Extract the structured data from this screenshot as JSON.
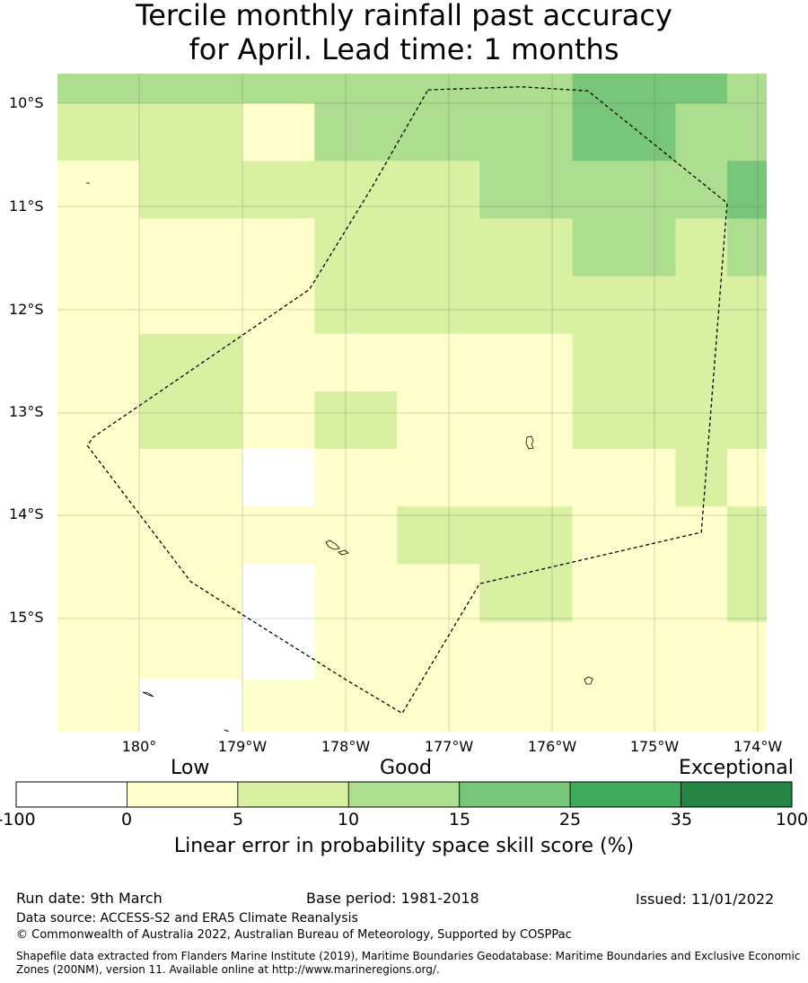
{
  "title": {
    "line1": "Tercile monthly rainfall past accuracy",
    "line2": "for April. Lead time: 1 months"
  },
  "map": {
    "lat_labels": [
      "10°S",
      "11°S",
      "12°S",
      "13°S",
      "14°S",
      "15°S"
    ],
    "lon_labels": [
      "180°",
      "179°W",
      "178°W",
      "177°W",
      "176°W",
      "175°W",
      "174°W"
    ],
    "grid": {
      "lon_edges": [
        -179.2,
        -180.0,
        -179.0,
        -178.3,
        -177.5,
        -176.7,
        -175.8,
        -174.8,
        -174.3,
        -173.9
      ],
      "lat_edges": [
        -9.7,
        -10.0,
        -10.56,
        -11.12,
        -11.68,
        -12.24,
        -12.8,
        -13.36,
        -13.92,
        -14.48,
        -15.04,
        -15.6,
        -16.12
      ],
      "categories": [
        [
          3,
          3,
          3,
          3,
          3,
          3,
          4,
          4,
          3
        ],
        [
          2,
          2,
          1,
          3,
          3,
          3,
          4,
          3,
          3
        ],
        [
          1,
          2,
          2,
          2,
          2,
          3,
          3,
          3,
          4
        ],
        [
          1,
          1,
          1,
          2,
          2,
          2,
          3,
          2,
          3
        ],
        [
          1,
          1,
          1,
          2,
          2,
          2,
          2,
          2,
          2
        ],
        [
          1,
          2,
          1,
          1,
          1,
          1,
          2,
          2,
          2
        ],
        [
          1,
          2,
          1,
          2,
          1,
          1,
          2,
          2,
          2
        ],
        [
          1,
          1,
          0,
          1,
          1,
          1,
          1,
          2,
          1
        ],
        [
          1,
          1,
          1,
          1,
          2,
          2,
          1,
          1,
          2
        ],
        [
          1,
          1,
          0,
          1,
          1,
          2,
          1,
          1,
          2
        ],
        [
          1,
          1,
          0,
          1,
          1,
          1,
          1,
          1,
          1
        ],
        [
          1,
          0,
          1,
          1,
          1,
          1,
          1,
          1,
          1
        ]
      ]
    },
    "eez_boundary": [
      [
        -177.2,
        -9.87
      ],
      [
        -176.3,
        -9.84
      ],
      [
        -175.65,
        -9.88
      ],
      [
        -174.3,
        -10.97
      ],
      [
        -174.55,
        -14.17
      ],
      [
        -176.7,
        -14.67
      ],
      [
        -177.45,
        -15.93
      ],
      [
        -178.0,
        -15.6
      ],
      [
        -179.0,
        -14.97
      ],
      [
        -179.5,
        -14.65
      ],
      [
        -180.5,
        -13.33
      ],
      [
        -180.45,
        -13.25
      ],
      [
        -178.35,
        -11.81
      ],
      [
        -177.75,
        -10.83
      ]
    ],
    "colors": [
      "#ffffff",
      "#ffffcc",
      "#d9f0a3",
      "#addd8e",
      "#78c679",
      "#41ab5d",
      "#238443"
    ]
  },
  "colorbar": {
    "category_labels": [
      "Low",
      "Good",
      "Exceptional"
    ],
    "ticks": [
      "-100",
      "0",
      "5",
      "10",
      "15",
      "25",
      "35",
      "100"
    ],
    "title": "Linear error in probability space skill score (%)"
  },
  "footer": {
    "run_date": "Run date: 9th March",
    "base_period": "Base period: 1981-2018",
    "issued": "Issued: 11/01/2022",
    "data_source": "Data source: ACCESS-S2 and ERA5 Climate Reanalysis",
    "copyright": "© Commonwealth of Australia 2022, Australian Bureau of Meteorology, Supported by COSPPac",
    "shapefile_line1": "Shapefile data extracted from Flanders Marine Institute (2019), Maritime Boundaries Geodatabase: Maritime Boundaries and Exclusive Economic",
    "shapefile_line2": "Zones (200NM), version 11. Available online at http://www.marineregions.org/."
  }
}
